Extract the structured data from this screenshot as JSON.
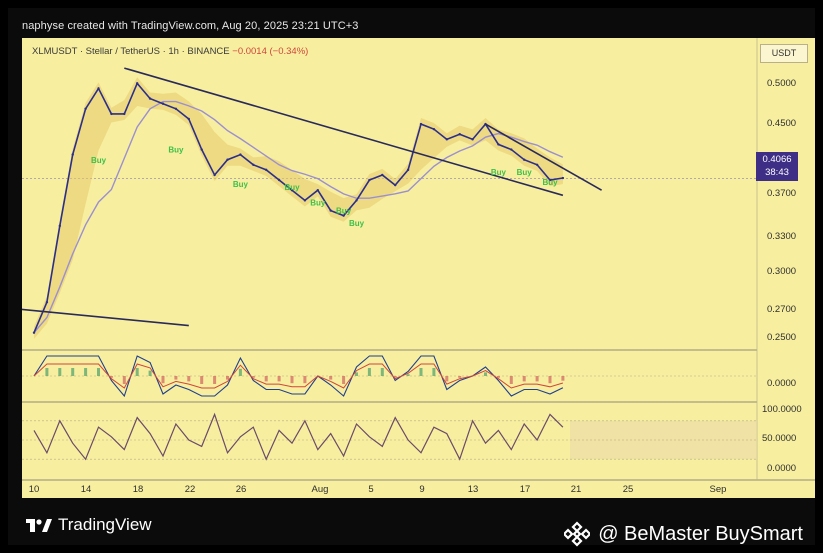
{
  "header": {
    "text": "naphyse created with TradingView.com, Aug 20, 2025 23:21 UTC+3"
  },
  "chart_info": {
    "symbol": "XLMUSDT · Stellar / TetherUS · 1h · BINANCE",
    "change": "−0.0014 (−0.34%)",
    "currency": "USDT",
    "last_price": "0.4066",
    "countdown": "38:43"
  },
  "price_axis": [
    "0.5000",
    "0.4500",
    "0.4066",
    "0.3700",
    "0.3300",
    "0.3000",
    "0.2700",
    "0.2500"
  ],
  "macd_axis": [
    "0.0000"
  ],
  "rsi_axis": [
    "100.0000",
    "50.0000",
    "0.0000"
  ],
  "time_axis": [
    "10",
    "14",
    "18",
    "22",
    "26",
    "Aug",
    "5",
    "9",
    "13",
    "17",
    "21",
    "25",
    "Sep"
  ],
  "buy_label": "Buy",
  "colors": {
    "panel_bg": "#f7ef9f",
    "price_line": "#2b2e8a",
    "trendline": "#2a2a5a",
    "buy_marker": "#3fbf4a",
    "price_tag": "#3f2e86",
    "macd_line": "#1f3f8f",
    "signal_line": "#d0463c",
    "rsi_line": "#6b4a6a"
  },
  "chart_data": {
    "type": "line",
    "series": [
      {
        "name": "XLMUSDT",
        "x": [
          "Jul 10",
          "Jul 11",
          "Jul 12",
          "Jul 13",
          "Jul 14",
          "Jul 15",
          "Jul 16",
          "Jul 17",
          "Jul 18",
          "Jul 19",
          "Jul 20",
          "Jul 21",
          "Jul 22",
          "Jul 23",
          "Jul 24",
          "Jul 25",
          "Jul 26",
          "Jul 27",
          "Jul 28",
          "Jul 29",
          "Jul 30",
          "Jul 31",
          "Aug 1",
          "Aug 2",
          "Aug 3",
          "Aug 4",
          "Aug 5",
          "Aug 6",
          "Aug 7",
          "Aug 8",
          "Aug 9",
          "Aug 10",
          "Aug 11",
          "Aug 12",
          "Aug 13",
          "Aug 14",
          "Aug 15",
          "Aug 16",
          "Aug 17",
          "Aug 18",
          "Aug 19",
          "Aug 20"
        ],
        "y": [
          0.255,
          0.285,
          0.36,
          0.43,
          0.475,
          0.495,
          0.47,
          0.47,
          0.5,
          0.485,
          0.48,
          0.475,
          0.465,
          0.435,
          0.41,
          0.425,
          0.43,
          0.42,
          0.415,
          0.405,
          0.395,
          0.385,
          0.395,
          0.375,
          0.37,
          0.385,
          0.405,
          0.41,
          0.4,
          0.415,
          0.46,
          0.455,
          0.445,
          0.45,
          0.445,
          0.46,
          0.44,
          0.435,
          0.425,
          0.42,
          0.405,
          0.407
        ]
      }
    ],
    "ylim": [
      0.24,
      0.52
    ],
    "trendlines": [
      {
        "from": [
          "Jul 17",
          0.515
        ],
        "to": [
          "Aug 20",
          0.39
        ]
      },
      {
        "from": [
          "Aug 14",
          0.46
        ],
        "to": [
          "Aug 23",
          0.395
        ]
      },
      {
        "from": [
          "Jul 9",
          0.278
        ],
        "to": [
          "Jul 22",
          0.262
        ]
      }
    ],
    "buy_signals": [
      {
        "x": "Jul 15",
        "y": 0.422
      },
      {
        "x": "Jul 21",
        "y": 0.432
      },
      {
        "x": "Jul 26",
        "y": 0.398
      },
      {
        "x": "Jul 30",
        "y": 0.395
      },
      {
        "x": "Aug 1",
        "y": 0.38
      },
      {
        "x": "Aug 3",
        "y": 0.372
      },
      {
        "x": "Aug 4",
        "y": 0.36
      },
      {
        "x": "Aug 15",
        "y": 0.41
      },
      {
        "x": "Aug 17",
        "y": 0.41
      },
      {
        "x": "Aug 19",
        "y": 0.4
      }
    ],
    "oscillator": {
      "ylim": [
        0,
        100
      ],
      "values": [
        65,
        30,
        80,
        45,
        20,
        70,
        55,
        35,
        85,
        60,
        25,
        75,
        50,
        40,
        90,
        30,
        55,
        70,
        20,
        65,
        45,
        80,
        35,
        60,
        25,
        75,
        55,
        40,
        85,
        50,
        30,
        70,
        60,
        20,
        80,
        45,
        65,
        35,
        75,
        50,
        90,
        70
      ]
    }
  }
}
